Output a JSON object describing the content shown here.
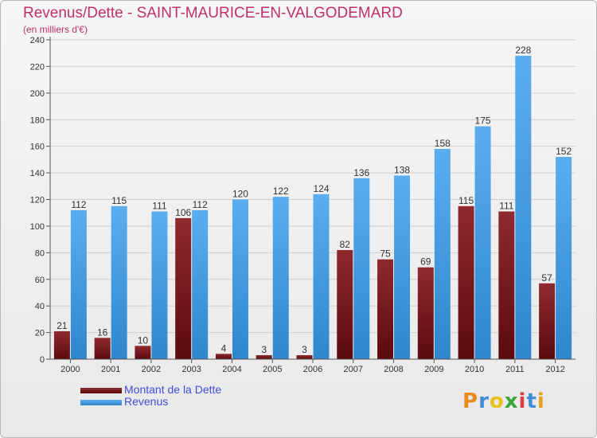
{
  "chart_data": {
    "type": "bar",
    "title": "Revenus/Dette - SAINT-MAURICE-EN-VALGODEMARD",
    "subtitle": "(en milliers d'€)",
    "categories": [
      "2000",
      "2001",
      "2002",
      "2003",
      "2004",
      "2005",
      "2006",
      "2007",
      "2008",
      "2009",
      "2010",
      "2011",
      "2012"
    ],
    "series": [
      {
        "name": "Montant de la Dette",
        "color": "#7a1a1f",
        "values": [
          21,
          16,
          10,
          106,
          4,
          3,
          3,
          82,
          75,
          69,
          115,
          111,
          57
        ]
      },
      {
        "name": "Revenus",
        "color": "#4aa0e6",
        "values": [
          112,
          115,
          111,
          112,
          120,
          122,
          124,
          136,
          138,
          158,
          175,
          228,
          152
        ]
      }
    ],
    "ylim": [
      0,
      240
    ],
    "yticks": [
      0,
      20,
      40,
      60,
      80,
      100,
      120,
      140,
      160,
      180,
      200,
      220,
      240
    ],
    "grid": true,
    "legend": "bottom-left"
  },
  "legend": {
    "debt_label": "Montant de la Dette",
    "revenue_label": "Revenus",
    "debt_color": "#7a1a1f",
    "revenue_color": "#4aa0e6"
  },
  "logo": {
    "letters": [
      "P",
      "r",
      "o",
      "x",
      "i",
      "t",
      "i"
    ],
    "colors": [
      "#e88b1c",
      "#3f8fd8",
      "#e8c21c",
      "#3aa53a",
      "#d83f3f",
      "#3f8fd8",
      "#e8a01c"
    ]
  }
}
